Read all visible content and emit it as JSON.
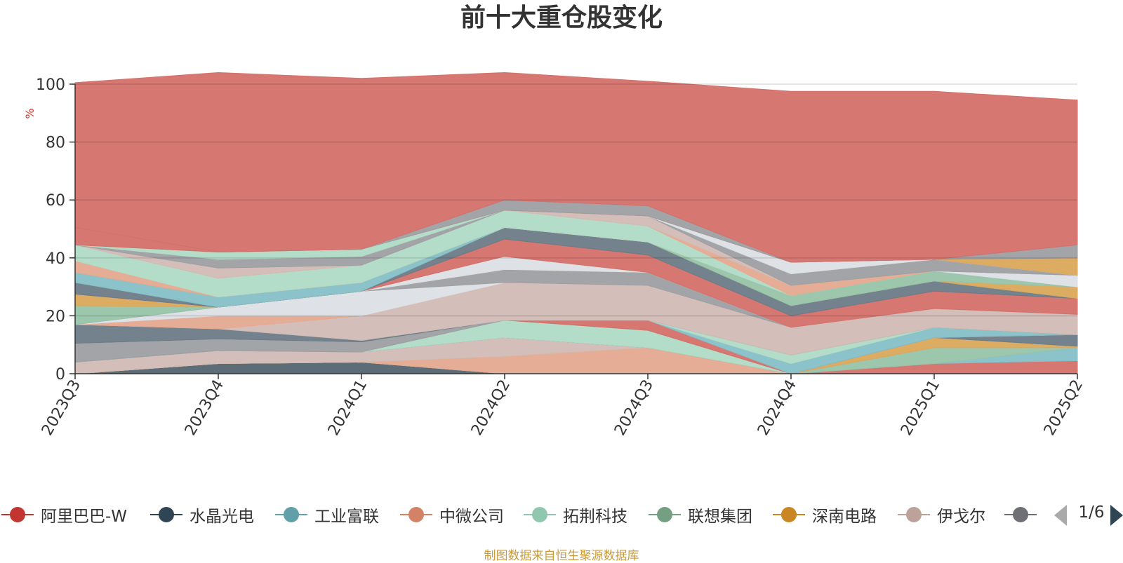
{
  "chart_data": {
    "type": "area",
    "title": "前十大重仓股变化",
    "ylabel": "%",
    "ylim": [
      0,
      100
    ],
    "yticks": [
      0,
      20,
      40,
      60,
      80,
      100
    ],
    "grid": true,
    "stacked": true,
    "categories": [
      "2023Q3",
      "2023Q4",
      "2024Q1",
      "2024Q2",
      "2024Q3",
      "2024Q4",
      "2025Q1",
      "2025Q2"
    ],
    "series": [
      {
        "name": "水晶光电",
        "color": "#546570",
        "values": [
          0,
          3.5,
          4,
          0,
          0,
          0,
          0,
          0
        ]
      },
      {
        "name": "",
        "color": "#d4706a",
        "values": [
          0,
          0,
          0,
          0,
          0,
          0,
          3.5,
          4.5
        ]
      },
      {
        "name": "工业富联",
        "color": "#86bfc6",
        "values": [
          0,
          0,
          0,
          0,
          0,
          0,
          0,
          4.5
        ]
      },
      {
        "name": "联想集团",
        "color": "#97c4a8",
        "values": [
          0,
          0,
          0,
          0,
          0,
          0,
          5.5,
          0
        ]
      },
      {
        "name": "中微公司",
        "color": "#e5a990",
        "values": [
          0,
          0,
          0,
          6,
          9,
          0,
          0,
          0
        ]
      },
      {
        "name": "深南电路",
        "color": "#dba85b",
        "values": [
          0,
          0,
          0,
          0,
          0,
          0,
          3.5,
          0.5
        ]
      },
      {
        "name": "伊戈尔",
        "color": "#d2bbb5",
        "values": [
          4,
          4.5,
          3.5,
          6.5,
          0,
          0,
          0,
          0
        ]
      },
      {
        "name": "",
        "color": "#6c7b87",
        "values": [
          0,
          0,
          0,
          0,
          0,
          0,
          0,
          4
        ]
      },
      {
        "name": "拓荆科技",
        "color": "#b0dbc6",
        "values": [
          0,
          0,
          0,
          6,
          6,
          0,
          0,
          0
        ]
      },
      {
        "name": "",
        "color": "#9e9fa3",
        "values": [
          6.5,
          4,
          3.5,
          0,
          0,
          0,
          0,
          0
        ]
      },
      {
        "name": "",
        "color": "#d4706a",
        "values": [
          0,
          0,
          0,
          0,
          3.5,
          0,
          0,
          0
        ]
      },
      {
        "name": "",
        "color": "#86bfc6",
        "values": [
          0,
          0,
          0,
          0,
          0,
          3.5,
          3.5,
          0
        ]
      },
      {
        "name": "",
        "color": "#b0dbc6",
        "values": [
          0,
          0,
          0,
          0,
          0,
          3,
          0,
          0
        ]
      },
      {
        "name": "",
        "color": "#6c7b87",
        "values": [
          6.5,
          3.5,
          0.5,
          0,
          0,
          0,
          0,
          0
        ]
      },
      {
        "name": "",
        "color": "#d2bbb5",
        "values": [
          0,
          0,
          8.5,
          13,
          12,
          9.5,
          6.5,
          7
        ]
      },
      {
        "name": "",
        "color": "#e5a990",
        "values": [
          0,
          4.5,
          0,
          0,
          0,
          0,
          0,
          0
        ]
      },
      {
        "name": "",
        "color": "#dcdfe4",
        "values": [
          0,
          3,
          8.5,
          0,
          0,
          0,
          0,
          0
        ]
      },
      {
        "name": "",
        "color": "#9e9fa3",
        "values": [
          0,
          0,
          0,
          4.5,
          4.5,
          0,
          0,
          0
        ]
      },
      {
        "name": "",
        "color": "#97c4a8",
        "values": [
          6.5,
          0,
          0,
          0,
          0,
          0,
          0,
          0
        ]
      },
      {
        "name": "",
        "color": "#dba85b",
        "values": [
          4,
          0,
          0,
          0,
          0,
          0,
          0,
          0
        ]
      },
      {
        "name": "",
        "color": "#dcdfe4",
        "values": [
          0,
          0,
          0,
          4.5,
          0,
          0,
          0,
          0
        ]
      },
      {
        "name": "",
        "color": "#d4706a",
        "values": [
          0,
          0,
          0,
          6,
          6,
          4,
          6,
          5.5
        ]
      },
      {
        "name": "",
        "color": "#6c7b87",
        "values": [
          4,
          0,
          0,
          4,
          4.5,
          3.5,
          3.5,
          0
        ]
      },
      {
        "name": "",
        "color": "#86bfc6",
        "values": [
          3.5,
          3.5,
          3,
          0,
          0,
          0,
          0,
          0
        ]
      },
      {
        "name": "",
        "color": "#dba85b",
        "values": [
          0,
          0,
          0,
          0,
          0,
          0,
          0,
          4
        ]
      },
      {
        "name": "",
        "color": "#97c4a8",
        "values": [
          0,
          0,
          0,
          0,
          0,
          3.5,
          3.5,
          0
        ]
      },
      {
        "name": "",
        "color": "#e5a990",
        "values": [
          4,
          0,
          0,
          0,
          0,
          0,
          0,
          0
        ]
      },
      {
        "name": "",
        "color": "#b0dbc6",
        "values": [
          5.5,
          6.5,
          6,
          6,
          5.5,
          0,
          0,
          0
        ]
      },
      {
        "name": "",
        "color": "#dcdfe4",
        "values": [
          0,
          0,
          0,
          0,
          0,
          0,
          0,
          4
        ]
      },
      {
        "name": "",
        "color": "#e5a990",
        "values": [
          0,
          0,
          0,
          0,
          0,
          3.5,
          0,
          0
        ]
      },
      {
        "name": "",
        "color": "#d2bbb5",
        "values": [
          0,
          3.5,
          0,
          0,
          3.5,
          0,
          0,
          0
        ]
      },
      {
        "name": "",
        "color": "#9e9fa3",
        "values": [
          0,
          3,
          3,
          0,
          0,
          4,
          4,
          0
        ]
      },
      {
        "name": "",
        "color": "#b0dbc6",
        "values": [
          0,
          2.5,
          2.5,
          0,
          0,
          0,
          0,
          0
        ]
      },
      {
        "name": "",
        "color": "#dcdfe4",
        "values": [
          0,
          0,
          0,
          0,
          0,
          4,
          0,
          0
        ]
      },
      {
        "name": "",
        "color": "#dba85b",
        "values": [
          0,
          0,
          0,
          0,
          0,
          0,
          0,
          6
        ]
      },
      {
        "name": "",
        "color": "#d4706a",
        "values": [
          6,
          0,
          0,
          0,
          0,
          0,
          0,
          0
        ]
      },
      {
        "name": "",
        "color": "#9e9fa3",
        "values": [
          0,
          0,
          0,
          3.5,
          3.5,
          0,
          0,
          4.5
        ]
      },
      {
        "name": "阿里巴巴-W",
        "color": "#d4706a",
        "values": [
          50,
          62,
          59,
          44,
          43,
          59,
          58,
          50
        ]
      }
    ]
  },
  "legend": {
    "items": [
      {
        "label": "阿里巴巴-W",
        "color": "#c23531"
      },
      {
        "label": "水晶光电",
        "color": "#2f4554"
      },
      {
        "label": "工业富联",
        "color": "#61a0a8"
      },
      {
        "label": "中微公司",
        "color": "#d48265"
      },
      {
        "label": "拓荆科技",
        "color": "#91c7ae"
      },
      {
        "label": "联想集团",
        "color": "#749f83"
      },
      {
        "label": "深南电路",
        "color": "#ca8622"
      },
      {
        "label": "伊戈尔",
        "color": "#bda29a"
      },
      {
        "label": "",
        "color": "#6e7074"
      }
    ],
    "page_text": "1/6"
  },
  "source_note": "制图数据来自恒生聚源数据库"
}
